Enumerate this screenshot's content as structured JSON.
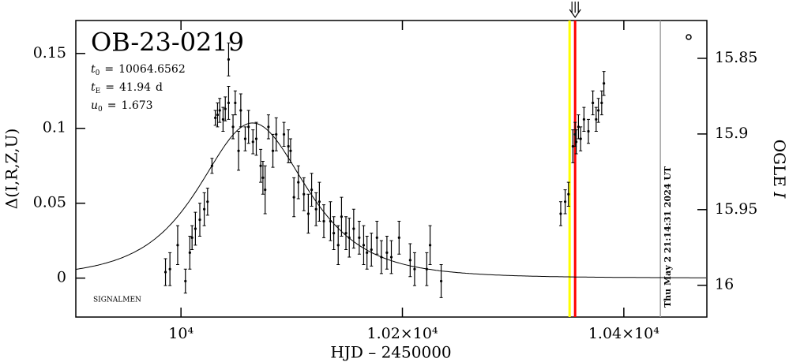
{
  "chart_data": {
    "type": "errorbar",
    "title": "OB-23-0219",
    "params": [
      {
        "name": "t",
        "sub": "0",
        "eq": "=",
        "value": 10064.6562
      },
      {
        "name": "t",
        "sub": "E",
        "eq": "=",
        "value": 41.94,
        "unit": "d"
      },
      {
        "name": "u",
        "sub": "0",
        "eq": "=",
        "value": 1.673
      }
    ],
    "credit": "SIGNALMEN",
    "x_label": "HJD – 2450000",
    "y_label": "Δ(I,R,Z,U)",
    "y2_label": "OGLE ",
    "y2_label_italic": "I",
    "xlim": [
      9905,
      10475
    ],
    "ylim": [
      -0.026,
      0.172
    ],
    "y2lim": [
      16.021,
      15.825
    ],
    "xticks": [
      {
        "value": 10000,
        "label": "10⁴"
      },
      {
        "value": 10200,
        "label": "1.02×10⁴"
      },
      {
        "value": 10400,
        "label": "1.04×10⁴"
      }
    ],
    "yticks": [
      0,
      0.05,
      0.1,
      0.15
    ],
    "y2ticks": [
      15.85,
      15.9,
      15.95,
      16
    ],
    "markers": [
      {
        "x": 10351,
        "color": "#ffff00"
      },
      {
        "x": 10356,
        "color": "#ff0000"
      },
      {
        "x": 10433,
        "color": "#a0a0a0",
        "label": "Thu May  2 21:14:31 2024 UT"
      }
    ],
    "series": [
      {
        "name": "OGLE I",
        "color": "#000000",
        "x": [
          9986,
          9990,
          9997,
          10004,
          10008,
          10010,
          10013,
          10017,
          10021,
          10024,
          10028,
          10031,
          10033,
          10035,
          10038,
          10040,
          10043,
          10043,
          10047,
          10049,
          10052,
          10054,
          10058,
          10061,
          10065,
          10068,
          10072,
          10074,
          10076,
          10079,
          10083,
          10086,
          10093,
          10097,
          10099,
          10102,
          10106,
          10111,
          10115,
          10118,
          10122,
          10125,
          10129,
          10135,
          10138,
          10142,
          10145,
          10149,
          10152,
          10156,
          10161,
          10165,
          10168,
          10172,
          10177,
          10181,
          10186,
          10190,
          10197,
          10207,
          10211,
          10222,
          10225,
          10235,
          10343,
          10347,
          10350,
          10354,
          10356,
          10357,
          10359,
          10361,
          10364,
          10368,
          10372,
          10375,
          10377,
          10380,
          10382
        ],
        "values": [
          0.004,
          0.006,
          0.022,
          -0.002,
          0.017,
          0.027,
          0.033,
          0.039,
          0.046,
          0.051,
          0.075,
          0.107,
          0.109,
          0.112,
          0.106,
          0.113,
          0.117,
          0.146,
          0.101,
          0.117,
          0.085,
          0.112,
          0.093,
          0.101,
          0.091,
          0.093,
          0.075,
          0.067,
          0.059,
          0.101,
          0.085,
          0.096,
          0.096,
          0.088,
          0.085,
          0.054,
          0.064,
          0.056,
          0.043,
          0.059,
          0.046,
          0.051,
          0.038,
          0.038,
          0.03,
          0.022,
          0.041,
          0.03,
          0.027,
          0.033,
          0.027,
          0.022,
          0.017,
          0.019,
          0.027,
          0.014,
          0.017,
          0.014,
          0.027,
          0.012,
          0.006,
          0.006,
          0.022,
          -0.002,
          0.043,
          0.051,
          0.056,
          0.088,
          0.096,
          0.091,
          0.101,
          0.093,
          0.106,
          0.098,
          0.117,
          0.106,
          0.112,
          0.117,
          0.13
        ],
        "errors": [
          0.009,
          0.011,
          0.013,
          0.008,
          0.011,
          0.008,
          0.011,
          0.011,
          0.011,
          0.009,
          0.005,
          0.005,
          0.008,
          0.008,
          0.008,
          0.008,
          0.011,
          0.011,
          0.008,
          0.008,
          0.013,
          0.011,
          0.008,
          0.011,
          0.008,
          0.011,
          0.011,
          0.011,
          0.016,
          0.008,
          0.011,
          0.011,
          0.008,
          0.011,
          0.008,
          0.013,
          0.011,
          0.011,
          0.013,
          0.011,
          0.011,
          0.013,
          0.011,
          0.013,
          0.011,
          0.013,
          0.013,
          0.011,
          0.013,
          0.013,
          0.011,
          0.013,
          0.011,
          0.011,
          0.011,
          0.011,
          0.011,
          0.011,
          0.011,
          0.011,
          0.011,
          0.011,
          0.013,
          0.011,
          0.008,
          0.008,
          0.008,
          0.011,
          0.008,
          0.008,
          0.008,
          0.008,
          0.008,
          0.008,
          0.008,
          0.008,
          0.008,
          0.008,
          0.008
        ]
      }
    ]
  }
}
